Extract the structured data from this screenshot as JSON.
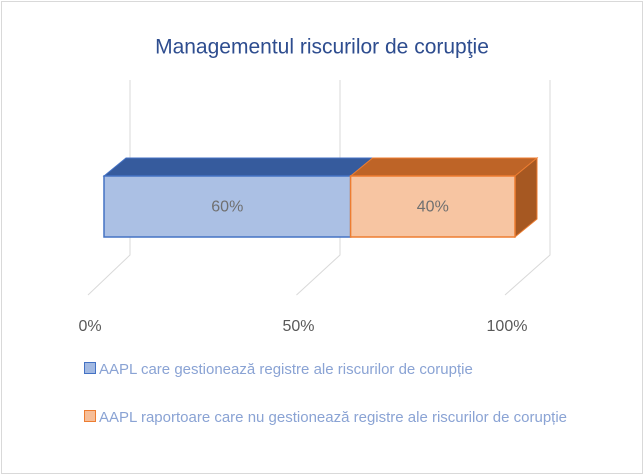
{
  "chart_data": {
    "type": "bar",
    "orientation": "horizontal",
    "stacked": true,
    "three_d": true,
    "title": "Managementul riscurilor de corupţie",
    "categories": [
      null
    ],
    "series": [
      {
        "name": "AAPL care gestionează registre ale riscurilor de corupție",
        "color": "#4472c4",
        "values": [
          60
        ],
        "value_labels": [
          "60%"
        ]
      },
      {
        "name": "AAPL raportoare care nu gestionează registre ale riscurilor de corupție",
        "color": "#ed7d31",
        "values": [
          40
        ],
        "value_labels": [
          "40%"
        ]
      }
    ],
    "xlim": [
      0,
      100
    ],
    "xticks": [
      {
        "value": 0,
        "label": "0%"
      },
      {
        "value": 50,
        "label": "50%"
      },
      {
        "value": 100,
        "label": "100%"
      }
    ],
    "grid": true,
    "legend": "bottom"
  }
}
